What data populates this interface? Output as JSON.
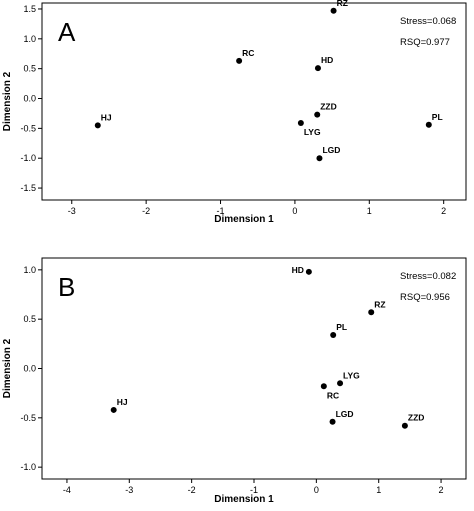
{
  "chart_data": [
    {
      "type": "scatter",
      "panel_label": "A",
      "xlabel": "Dimension 1",
      "ylabel": "Dimension 2",
      "xlim": [
        -3.4,
        2.3
      ],
      "ylim": [
        -1.7,
        1.6
      ],
      "xticks": [
        "-3",
        "-2",
        "-1",
        "0",
        "1",
        "2"
      ],
      "xtick_values": [
        -3,
        -2,
        -1,
        0,
        1,
        2
      ],
      "yticks": [
        "1.5",
        "1.0",
        "0.5",
        "0.0",
        "-0.5",
        "-1.0",
        "-1.5"
      ],
      "ytick_values": [
        1.5,
        1.0,
        0.5,
        0.0,
        -0.5,
        -1.0,
        -1.5
      ],
      "stats": [
        "Stress=0.068",
        "RSQ=0.977"
      ],
      "points": [
        {
          "label": "RZ",
          "x": 0.52,
          "y": 1.47,
          "label_pos": "above-right"
        },
        {
          "label": "RC",
          "x": -0.75,
          "y": 0.63,
          "label_pos": "above-right"
        },
        {
          "label": "HD",
          "x": 0.31,
          "y": 0.51,
          "label_pos": "above-right"
        },
        {
          "label": "ZZD",
          "x": 0.3,
          "y": -0.27,
          "label_pos": "above-right"
        },
        {
          "label": "LYG",
          "x": 0.08,
          "y": -0.41,
          "label_pos": "below-right"
        },
        {
          "label": "HJ",
          "x": -2.65,
          "y": -0.45,
          "label_pos": "above-right"
        },
        {
          "label": "PL",
          "x": 1.8,
          "y": -0.44,
          "label_pos": "above-right"
        },
        {
          "label": "LGD",
          "x": 0.33,
          "y": -1.0,
          "label_pos": "above-right"
        }
      ]
    },
    {
      "type": "scatter",
      "panel_label": "B",
      "xlabel": "Dimension 1",
      "ylabel": "Dimension 2",
      "xlim": [
        -4.4,
        2.4
      ],
      "ylim": [
        -1.12,
        1.12
      ],
      "xticks": [
        "-4",
        "-3",
        "-2",
        "-1",
        "0",
        "1",
        "2"
      ],
      "xtick_values": [
        -4,
        -3,
        -2,
        -1,
        0,
        1,
        2
      ],
      "yticks": [
        "1.0",
        "0.5",
        "0.0",
        "-0.5",
        "-1.0"
      ],
      "ytick_values": [
        1.0,
        0.5,
        0.0,
        -0.5,
        -1.0
      ],
      "stats": [
        "Stress=0.082",
        "RSQ=0.956"
      ],
      "points": [
        {
          "label": "HD",
          "x": -0.12,
          "y": 0.98,
          "label_pos": "left"
        },
        {
          "label": "RZ",
          "x": 0.88,
          "y": 0.57,
          "label_pos": "above-right"
        },
        {
          "label": "PL",
          "x": 0.27,
          "y": 0.34,
          "label_pos": "above-right"
        },
        {
          "label": "LYG",
          "x": 0.38,
          "y": -0.15,
          "label_pos": "above-right"
        },
        {
          "label": "RC",
          "x": 0.12,
          "y": -0.18,
          "label_pos": "below-right"
        },
        {
          "label": "HJ",
          "x": -3.25,
          "y": -0.42,
          "label_pos": "above-right"
        },
        {
          "label": "LGD",
          "x": 0.26,
          "y": -0.54,
          "label_pos": "above-right"
        },
        {
          "label": "ZZD",
          "x": 1.42,
          "y": -0.58,
          "label_pos": "above-right"
        }
      ]
    }
  ]
}
